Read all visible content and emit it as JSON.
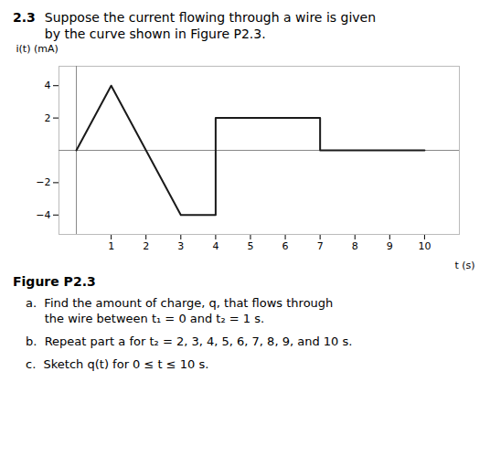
{
  "chart_data": {
    "type": "line",
    "title": "2.3",
    "subtitle": "Suppose the current flowing through a wire is given\nby the curve shown in Figure P2.3.",
    "caption": "Figure P2.3",
    "annotations": [
      "a.  Find the amount of charge, q, that flows through\n     the wire between t₁ = 0 and t₂ = 1 s.",
      "b.  Repeat part a for t₂ = 2, 3, 4, 5, 6, 7, 8, 9, and 10 s.",
      "c.  Sketch q(t) for 0 ≤ t ≤ 10 s."
    ],
    "x_label": "t (s)",
    "y_label": "i(t) (mA)",
    "x": [
      0,
      1,
      2,
      3,
      4,
      4,
      7,
      7,
      10
    ],
    "values": [
      0,
      4,
      0,
      -4,
      -4,
      2,
      2,
      0,
      0
    ],
    "color": "#1a1a1a",
    "xlim": [
      -0.5,
      11.0
    ],
    "ylim": [
      -5.2,
      5.2
    ],
    "xticks": [
      1,
      2,
      3,
      4,
      5,
      6,
      7,
      8,
      9,
      10
    ],
    "yticks": [
      -4,
      -2,
      2,
      4
    ],
    "grid": false
  }
}
